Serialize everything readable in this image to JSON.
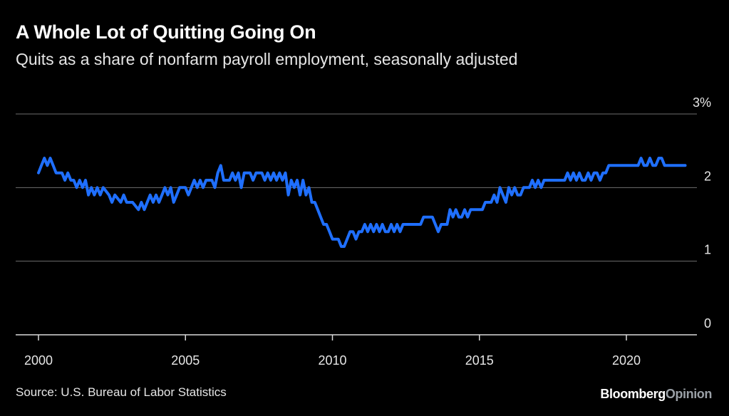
{
  "chart_data": {
    "type": "line",
    "title": "A Whole Lot of Quitting Going On",
    "subtitle": "Quits as a share of nonfarm payroll employment, seasonally adjusted",
    "xlabel": "",
    "ylabel": "",
    "xlim": [
      2000.0,
      2022.4
    ],
    "ylim": [
      0,
      3
    ],
    "yticks": [
      {
        "value": 3,
        "label": "3%"
      },
      {
        "value": 2,
        "label": "2"
      },
      {
        "value": 1,
        "label": "1"
      },
      {
        "value": 0,
        "label": "0"
      }
    ],
    "xticks": [
      {
        "value": 2000,
        "label": "2000"
      },
      {
        "value": 2005,
        "label": "2005"
      },
      {
        "value": 2010,
        "label": "2010"
      },
      {
        "value": 2015,
        "label": "2015"
      },
      {
        "value": 2020,
        "label": "2020"
      }
    ],
    "grid": true,
    "line_color": "#1f6fff",
    "series": [
      {
        "name": "",
        "points": [
          [
            2000.0,
            2.2
          ],
          [
            2000.1,
            2.3
          ],
          [
            2000.2,
            2.4
          ],
          [
            2000.3,
            2.3
          ],
          [
            2000.4,
            2.4
          ],
          [
            2000.5,
            2.3
          ],
          [
            2000.6,
            2.2
          ],
          [
            2000.8,
            2.2
          ],
          [
            2000.9,
            2.1
          ],
          [
            2001.0,
            2.2
          ],
          [
            2001.1,
            2.1
          ],
          [
            2001.2,
            2.1
          ],
          [
            2001.3,
            2.0
          ],
          [
            2001.4,
            2.1
          ],
          [
            2001.5,
            2.0
          ],
          [
            2001.6,
            2.1
          ],
          [
            2001.7,
            1.9
          ],
          [
            2001.8,
            2.0
          ],
          [
            2001.9,
            1.9
          ],
          [
            2002.0,
            2.0
          ],
          [
            2002.1,
            1.9
          ],
          [
            2002.2,
            2.0
          ],
          [
            2002.4,
            1.9
          ],
          [
            2002.5,
            1.8
          ],
          [
            2002.6,
            1.9
          ],
          [
            2002.8,
            1.8
          ],
          [
            2002.9,
            1.9
          ],
          [
            2003.0,
            1.8
          ],
          [
            2003.2,
            1.8
          ],
          [
            2003.4,
            1.7
          ],
          [
            2003.5,
            1.8
          ],
          [
            2003.6,
            1.7
          ],
          [
            2003.7,
            1.8
          ],
          [
            2003.8,
            1.9
          ],
          [
            2003.9,
            1.8
          ],
          [
            2004.0,
            1.9
          ],
          [
            2004.1,
            1.8
          ],
          [
            2004.2,
            1.9
          ],
          [
            2004.3,
            2.0
          ],
          [
            2004.4,
            1.9
          ],
          [
            2004.5,
            2.0
          ],
          [
            2004.6,
            1.8
          ],
          [
            2004.7,
            1.9
          ],
          [
            2004.8,
            2.0
          ],
          [
            2005.0,
            2.0
          ],
          [
            2005.1,
            1.9
          ],
          [
            2005.2,
            2.0
          ],
          [
            2005.3,
            2.1
          ],
          [
            2005.4,
            2.0
          ],
          [
            2005.5,
            2.1
          ],
          [
            2005.6,
            2.0
          ],
          [
            2005.7,
            2.1
          ],
          [
            2005.9,
            2.1
          ],
          [
            2006.0,
            2.0
          ],
          [
            2006.1,
            2.2
          ],
          [
            2006.2,
            2.3
          ],
          [
            2006.3,
            2.1
          ],
          [
            2006.5,
            2.1
          ],
          [
            2006.6,
            2.2
          ],
          [
            2006.7,
            2.1
          ],
          [
            2006.8,
            2.2
          ],
          [
            2006.9,
            2.0
          ],
          [
            2007.0,
            2.2
          ],
          [
            2007.2,
            2.2
          ],
          [
            2007.3,
            2.1
          ],
          [
            2007.4,
            2.2
          ],
          [
            2007.6,
            2.2
          ],
          [
            2007.7,
            2.1
          ],
          [
            2007.8,
            2.2
          ],
          [
            2007.9,
            2.1
          ],
          [
            2008.0,
            2.2
          ],
          [
            2008.1,
            2.1
          ],
          [
            2008.2,
            2.2
          ],
          [
            2008.3,
            2.1
          ],
          [
            2008.4,
            2.2
          ],
          [
            2008.5,
            1.9
          ],
          [
            2008.6,
            2.1
          ],
          [
            2008.7,
            2.0
          ],
          [
            2008.8,
            2.1
          ],
          [
            2008.9,
            1.9
          ],
          [
            2009.0,
            2.1
          ],
          [
            2009.1,
            1.9
          ],
          [
            2009.2,
            2.0
          ],
          [
            2009.3,
            1.8
          ],
          [
            2009.4,
            1.8
          ],
          [
            2009.5,
            1.7
          ],
          [
            2009.6,
            1.6
          ],
          [
            2009.7,
            1.5
          ],
          [
            2009.8,
            1.5
          ],
          [
            2009.9,
            1.4
          ],
          [
            2010.0,
            1.3
          ],
          [
            2010.1,
            1.3
          ],
          [
            2010.2,
            1.3
          ],
          [
            2010.3,
            1.2
          ],
          [
            2010.4,
            1.2
          ],
          [
            2010.5,
            1.3
          ],
          [
            2010.6,
            1.4
          ],
          [
            2010.7,
            1.4
          ],
          [
            2010.8,
            1.3
          ],
          [
            2010.9,
            1.4
          ],
          [
            2011.0,
            1.4
          ],
          [
            2011.1,
            1.5
          ],
          [
            2011.2,
            1.4
          ],
          [
            2011.3,
            1.5
          ],
          [
            2011.4,
            1.4
          ],
          [
            2011.5,
            1.5
          ],
          [
            2011.6,
            1.4
          ],
          [
            2011.7,
            1.5
          ],
          [
            2011.8,
            1.4
          ],
          [
            2011.9,
            1.4
          ],
          [
            2012.0,
            1.5
          ],
          [
            2012.1,
            1.4
          ],
          [
            2012.2,
            1.5
          ],
          [
            2012.3,
            1.4
          ],
          [
            2012.4,
            1.5
          ],
          [
            2012.5,
            1.5
          ],
          [
            2012.6,
            1.5
          ],
          [
            2012.7,
            1.5
          ],
          [
            2012.8,
            1.5
          ],
          [
            2012.9,
            1.5
          ],
          [
            2013.0,
            1.5
          ],
          [
            2013.1,
            1.6
          ],
          [
            2013.2,
            1.6
          ],
          [
            2013.3,
            1.6
          ],
          [
            2013.4,
            1.6
          ],
          [
            2013.5,
            1.5
          ],
          [
            2013.6,
            1.4
          ],
          [
            2013.7,
            1.5
          ],
          [
            2013.8,
            1.5
          ],
          [
            2013.9,
            1.5
          ],
          [
            2014.0,
            1.7
          ],
          [
            2014.1,
            1.6
          ],
          [
            2014.2,
            1.7
          ],
          [
            2014.3,
            1.6
          ],
          [
            2014.4,
            1.6
          ],
          [
            2014.5,
            1.7
          ],
          [
            2014.6,
            1.6
          ],
          [
            2014.7,
            1.7
          ],
          [
            2014.8,
            1.7
          ],
          [
            2014.9,
            1.7
          ],
          [
            2015.0,
            1.7
          ],
          [
            2015.1,
            1.7
          ],
          [
            2015.2,
            1.8
          ],
          [
            2015.3,
            1.8
          ],
          [
            2015.4,
            1.8
          ],
          [
            2015.5,
            1.9
          ],
          [
            2015.6,
            1.8
          ],
          [
            2015.7,
            2.0
          ],
          [
            2015.8,
            1.9
          ],
          [
            2015.9,
            1.8
          ],
          [
            2016.0,
            2.0
          ],
          [
            2016.1,
            1.9
          ],
          [
            2016.2,
            2.0
          ],
          [
            2016.3,
            1.9
          ],
          [
            2016.4,
            1.9
          ],
          [
            2016.5,
            2.0
          ],
          [
            2016.6,
            2.0
          ],
          [
            2016.7,
            2.0
          ],
          [
            2016.8,
            2.1
          ],
          [
            2016.9,
            2.0
          ],
          [
            2017.0,
            2.1
          ],
          [
            2017.1,
            2.0
          ],
          [
            2017.2,
            2.1
          ],
          [
            2017.3,
            2.1
          ],
          [
            2017.5,
            2.1
          ],
          [
            2017.6,
            2.1
          ],
          [
            2017.7,
            2.1
          ],
          [
            2017.8,
            2.1
          ],
          [
            2017.9,
            2.1
          ],
          [
            2018.0,
            2.2
          ],
          [
            2018.1,
            2.1
          ],
          [
            2018.2,
            2.2
          ],
          [
            2018.3,
            2.1
          ],
          [
            2018.4,
            2.2
          ],
          [
            2018.5,
            2.1
          ],
          [
            2018.6,
            2.1
          ],
          [
            2018.7,
            2.2
          ],
          [
            2018.8,
            2.1
          ],
          [
            2018.9,
            2.2
          ],
          [
            2019.0,
            2.2
          ],
          [
            2019.1,
            2.1
          ],
          [
            2019.2,
            2.2
          ],
          [
            2019.3,
            2.2
          ],
          [
            2019.4,
            2.3
          ],
          [
            2019.5,
            2.3
          ],
          [
            2019.6,
            2.3
          ],
          [
            2019.7,
            2.3
          ],
          [
            2019.8,
            2.3
          ],
          [
            2019.9,
            2.3
          ],
          [
            2020.0,
            2.3
          ],
          [
            2020.1,
            2.3
          ],
          [
            2020.2,
            2.3
          ],
          [
            2020.3,
            2.3
          ],
          [
            2020.4,
            2.3
          ],
          [
            2020.5,
            2.4
          ],
          [
            2020.6,
            2.3
          ],
          [
            2020.7,
            2.3
          ],
          [
            2020.8,
            2.4
          ],
          [
            2020.9,
            2.3
          ],
          [
            2021.0,
            2.3
          ],
          [
            2021.1,
            2.4
          ],
          [
            2021.2,
            2.4
          ],
          [
            2021.3,
            2.3
          ],
          [
            2021.4,
            2.3
          ],
          [
            2021.5,
            2.3
          ],
          [
            2021.6,
            2.3
          ],
          [
            2021.7,
            2.3
          ],
          [
            2021.8,
            2.3
          ],
          [
            2021.9,
            2.3
          ],
          [
            2022.0,
            2.3
          ]
        ]
      }
    ],
    "source": "Source: U.S. Bureau of Labor Statistics"
  },
  "brand": {
    "name_part1": "Bloomberg",
    "name_part2": "Opinion"
  }
}
